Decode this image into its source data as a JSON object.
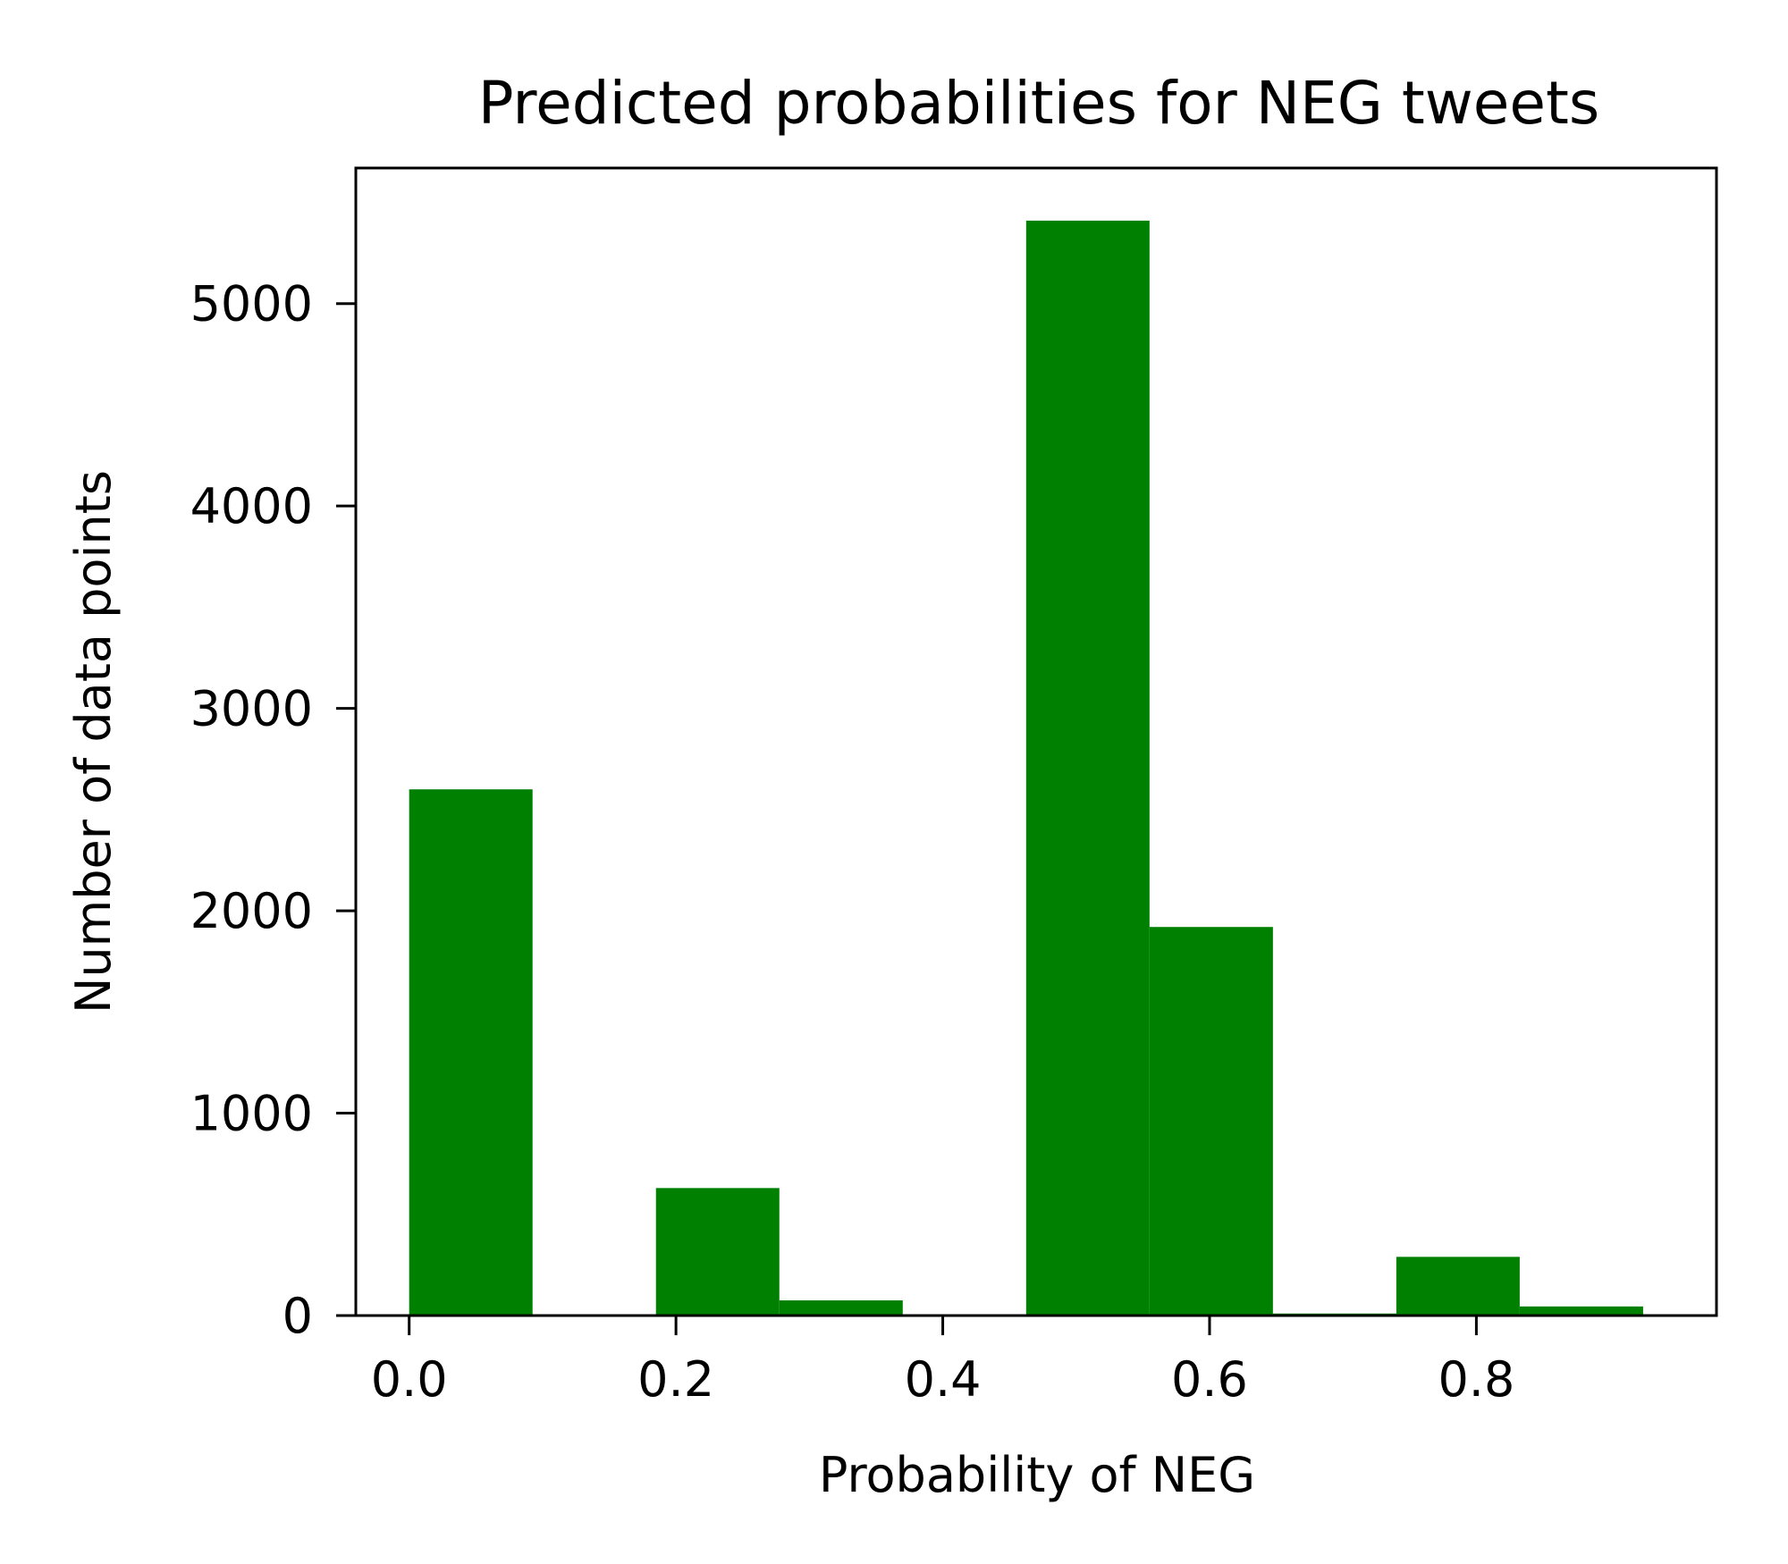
{
  "chart_data": {
    "type": "bar",
    "title": "Predicted probabilities for NEG tweets",
    "xlabel": "Probability of NEG",
    "ylabel": "Number of data points",
    "xlim": [
      -0.04,
      0.98
    ],
    "ylim": [
      0,
      5670
    ],
    "xticks": [
      0.0,
      0.2,
      0.4,
      0.6,
      0.8
    ],
    "xtick_labels": [
      "0.0",
      "0.2",
      "0.4",
      "0.6",
      "0.8"
    ],
    "yticks": [
      0,
      1000,
      2000,
      3000,
      4000,
      5000
    ],
    "ytick_labels": [
      "0",
      "1000",
      "2000",
      "3000",
      "4000",
      "5000"
    ],
    "bin_edges": [
      0.0,
      0.0925,
      0.185,
      0.2775,
      0.37,
      0.4625,
      0.555,
      0.6475,
      0.74,
      0.8325,
      0.925
    ],
    "values": [
      2600,
      0,
      630,
      75,
      0,
      5410,
      1920,
      10,
      290,
      45
    ],
    "grid": false,
    "colors": {
      "bar": "#008000",
      "axes": "#000000",
      "background": "#ffffff"
    }
  }
}
